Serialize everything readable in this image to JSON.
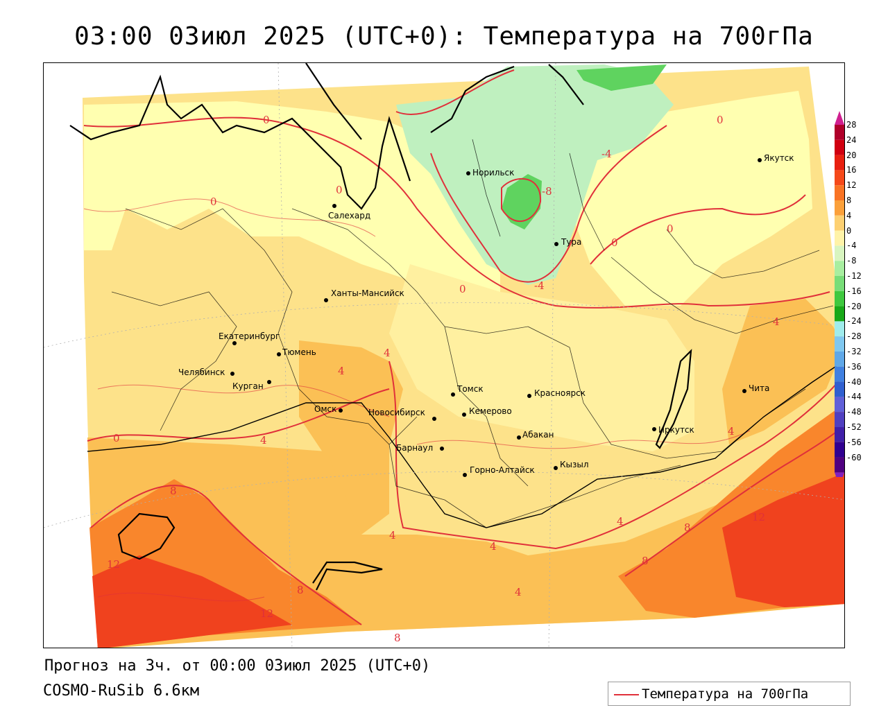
{
  "title": "03:00 03июл 2025 (UTC+0): Температура на 700гПа",
  "footer": {
    "forecast": "Прогноз на 3ч. от 00:00 03июл 2025 (UTC+0)",
    "model": "COSMO-RuSib 6.6км"
  },
  "legend": {
    "label": "Температура на 700гПа",
    "line_color": "#e0303a"
  },
  "colors": {
    "isoline": "#e0303a",
    "zone_cold_8": "#5fd35f",
    "zone_cold_4": "#bff0bf",
    "zone_0": "#ffffb0",
    "zone_plus": "#fde28a",
    "zone_4": "#fbc055",
    "zone_8": "#f9862c",
    "zone_12": "#f0421e"
  },
  "color_scale": {
    "ticks": [
      "28",
      "24",
      "20",
      "16",
      "12",
      "8",
      "4",
      "0",
      "-4",
      "-8",
      "-12",
      "-16",
      "-20",
      "-24",
      "-28",
      "-32",
      "-36",
      "-40",
      "-44",
      "-48",
      "-52",
      "-56",
      "-60"
    ],
    "colors": [
      "#b0002a",
      "#d00010",
      "#e82010",
      "#f5491a",
      "#f97324",
      "#fba03a",
      "#fdd072",
      "#fff3a8",
      "#d8f5c0",
      "#a8eea0",
      "#78dd78",
      "#3fc83f",
      "#18a818",
      "#a0ecec",
      "#80c8f0",
      "#60a8e8",
      "#4080e0",
      "#3060d0",
      "#6060d8",
      "#5040c0",
      "#4020a8",
      "#300090",
      "#500080"
    ]
  },
  "cities": [
    {
      "name": "Норильск"
    },
    {
      "name": "Якутск"
    },
    {
      "name": "Салехард"
    },
    {
      "name": "Тура"
    },
    {
      "name": "Ханты-Мансийск"
    },
    {
      "name": "Екатеринбург"
    },
    {
      "name": "Тюмень"
    },
    {
      "name": "Челябинск"
    },
    {
      "name": "Курган"
    },
    {
      "name": "Омск"
    },
    {
      "name": "Новосибирск"
    },
    {
      "name": "Томск"
    },
    {
      "name": "Кемерово"
    },
    {
      "name": "Красноярск"
    },
    {
      "name": "Барнаул"
    },
    {
      "name": "Абакан"
    },
    {
      "name": "Горно-Алтайск"
    },
    {
      "name": "Кызыл"
    },
    {
      "name": "Иркутск"
    },
    {
      "name": "Чита"
    }
  ],
  "isolines": [
    {
      "value": "0"
    },
    {
      "value": "0"
    },
    {
      "value": "0"
    },
    {
      "value": "0"
    },
    {
      "value": "0"
    },
    {
      "value": "0"
    },
    {
      "value": "0"
    },
    {
      "value": "0"
    },
    {
      "value": "-4"
    },
    {
      "value": "-8"
    },
    {
      "value": "-4"
    },
    {
      "value": "4"
    },
    {
      "value": "4"
    },
    {
      "value": "4"
    },
    {
      "value": "4"
    },
    {
      "value": "4"
    },
    {
      "value": "4"
    },
    {
      "value": "4"
    },
    {
      "value": "4"
    },
    {
      "value": "4"
    },
    {
      "value": "8"
    },
    {
      "value": "8"
    },
    {
      "value": "8"
    },
    {
      "value": "8"
    },
    {
      "value": "8"
    },
    {
      "value": "12"
    },
    {
      "value": "12"
    },
    {
      "value": "12"
    }
  ]
}
